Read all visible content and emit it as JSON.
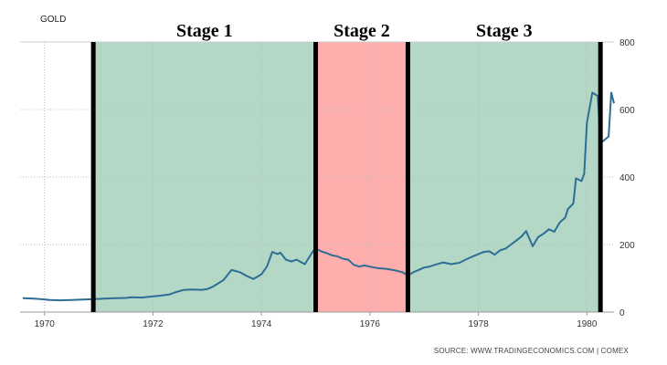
{
  "chart_data": {
    "type": "line",
    "series_label": "GOLD",
    "source": "SOURCE: WWW.TRADINGECONOMICS.COM | COMEX",
    "colors": {
      "line": "#2e6e96",
      "stage_green": "#b3d8c6",
      "stage_red": "#ffaeae",
      "divider": "#000000",
      "grid": "#bbbbbb"
    },
    "grid": true,
    "xlim": [
      1969.55,
      1980.5
    ],
    "ylim": [
      0,
      800
    ],
    "x_ticks": [
      1970,
      1972,
      1974,
      1976,
      1978,
      1980
    ],
    "x_tick_labels": [
      "1970",
      "1972",
      "1974",
      "1976",
      "1978",
      "1980"
    ],
    "y_ticks": [
      0,
      200,
      400,
      600,
      800
    ],
    "y_tick_labels": [
      "0",
      "200",
      "400",
      "600",
      "800"
    ],
    "stages": [
      {
        "label": "Stage 1",
        "start": 1970.9,
        "end": 1975.0,
        "fill": "#b3d8c6"
      },
      {
        "label": "Stage 2",
        "start": 1975.0,
        "end": 1976.7,
        "fill": "#ffaeae"
      },
      {
        "label": "Stage 3",
        "start": 1976.7,
        "end": 1980.25,
        "fill": "#b3d8c6"
      }
    ],
    "dividers": [
      1970.9,
      1975.0,
      1976.7,
      1980.25
    ],
    "series": [
      {
        "x": [
          1969.6,
          1969.8,
          1969.95,
          1970.1,
          1970.3,
          1970.5,
          1970.7,
          1970.9,
          1971.1,
          1971.3,
          1971.5,
          1971.6,
          1971.8,
          1971.9,
          1972.1,
          1972.3,
          1972.4,
          1972.55,
          1972.7,
          1972.9,
          1973.0,
          1973.1,
          1973.2,
          1973.3,
          1973.45,
          1973.6,
          1973.75,
          1973.85,
          1974.0,
          1974.1,
          1974.2,
          1974.3,
          1974.35,
          1974.45,
          1974.55,
          1974.65,
          1974.8,
          1974.95,
          1975.0,
          1975.1,
          1975.2,
          1975.3,
          1975.4,
          1975.5,
          1975.6,
          1975.7,
          1975.8,
          1975.9,
          1976.05,
          1976.15,
          1976.3,
          1976.45,
          1976.6,
          1976.7,
          1976.8,
          1976.9,
          1977.0,
          1977.1,
          1977.2,
          1977.35,
          1977.5,
          1977.65,
          1977.8,
          1977.9,
          1978.0,
          1978.1,
          1978.2,
          1978.3,
          1978.4,
          1978.5,
          1978.6,
          1978.7,
          1978.8,
          1978.88,
          1979.0,
          1979.1,
          1979.2,
          1979.3,
          1979.4,
          1979.5,
          1979.6,
          1979.65,
          1979.75,
          1979.8,
          1979.9,
          1979.95,
          1980.0,
          1980.1,
          1980.2,
          1980.25,
          1980.4,
          1980.45,
          1980.5
        ],
        "y": [
          41,
          40,
          38,
          36,
          35,
          36,
          37,
          38,
          40,
          41,
          42,
          44,
          43,
          45,
          48,
          52,
          58,
          65,
          67,
          66,
          68,
          75,
          85,
          95,
          125,
          118,
          105,
          98,
          112,
          135,
          178,
          172,
          176,
          155,
          150,
          155,
          142,
          180,
          188,
          180,
          175,
          168,
          165,
          158,
          155,
          140,
          135,
          138,
          133,
          130,
          128,
          124,
          118,
          108,
          118,
          125,
          132,
          135,
          140,
          147,
          142,
          146,
          158,
          165,
          172,
          178,
          180,
          170,
          183,
          188,
          200,
          212,
          225,
          240,
          195,
          222,
          232,
          245,
          238,
          265,
          280,
          305,
          322,
          396,
          388,
          410,
          560,
          650,
          640,
          500,
          520,
          650,
          618
        ]
      }
    ]
  }
}
